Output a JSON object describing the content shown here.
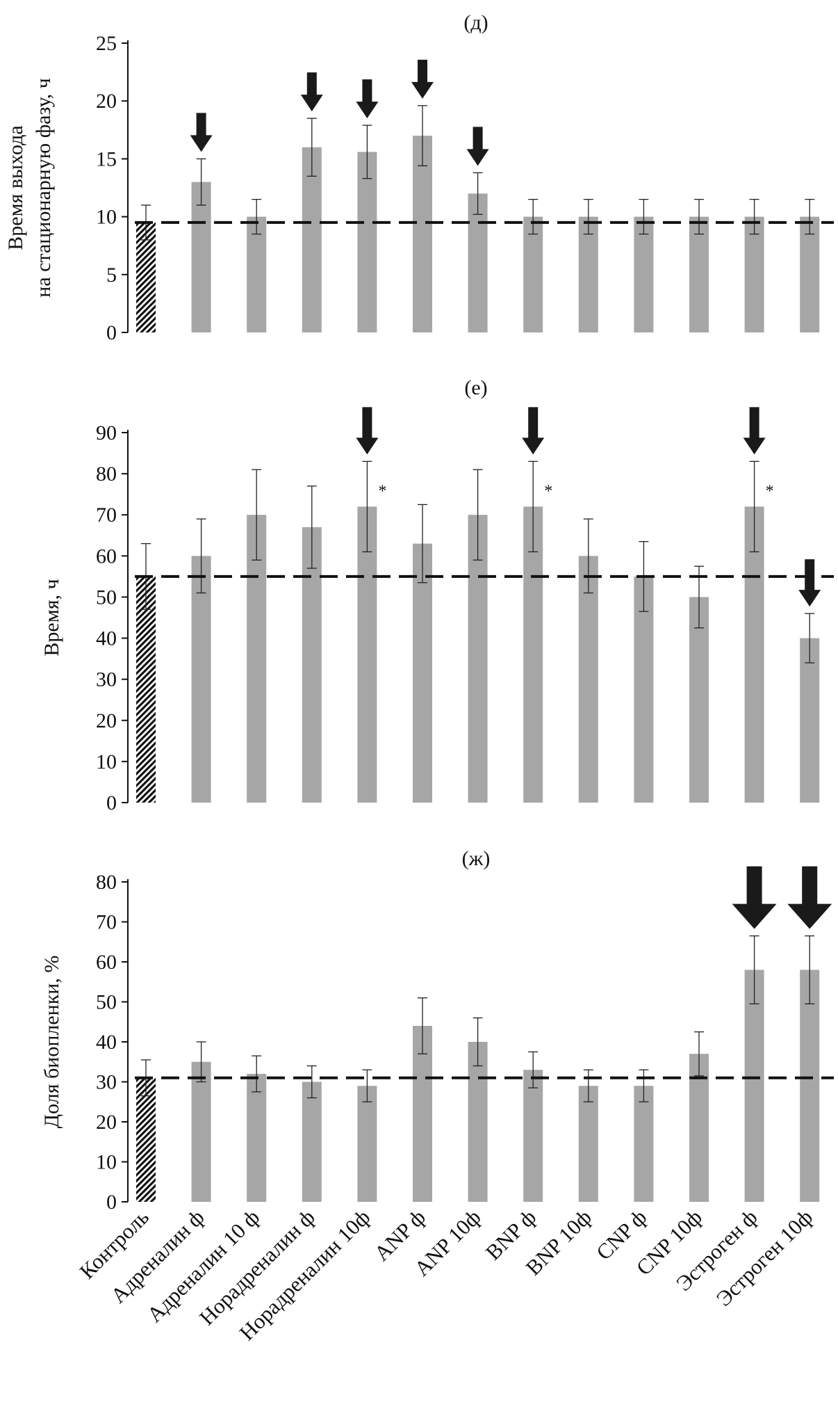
{
  "categories": [
    "Контроль",
    "Адреналин ф",
    "Адреналин 10 ф",
    "Норадреналин ф",
    "Норадреналин 10ф",
    "ANP ф",
    "ANP 10ф",
    "BNP ф",
    "BNP 10ф",
    "CNP ф",
    "CNP 10ф",
    "Эстроген ф",
    "Эстроген 10ф"
  ],
  "colors": {
    "bar": "#a6a6a6",
    "control_hatch": "#111111",
    "arrow": "#1a1a1a",
    "reference_line": "#111111"
  },
  "chart_data": [
    {
      "type": "bar",
      "panel_label": "(д)",
      "title": "",
      "ylabel_lines": [
        "Время выхода",
        "на стационарную фазу, ч"
      ],
      "xlabel": "",
      "ylim": [
        0,
        25
      ],
      "yticks": [
        0,
        5,
        10,
        15,
        20,
        25
      ],
      "values": [
        9.5,
        13,
        10,
        16,
        15.6,
        17,
        12,
        10,
        10,
        10,
        10,
        10,
        10
      ],
      "errors": [
        1.5,
        2,
        1.5,
        2.5,
        2.3,
        2.6,
        1.8,
        1.5,
        1.5,
        1.5,
        1.5,
        1.5,
        1.5
      ],
      "reference_line": 9.5,
      "arrows": [
        1,
        3,
        4,
        5,
        6
      ],
      "asterisks": []
    },
    {
      "type": "bar",
      "panel_label": "(е)",
      "title": "",
      "ylabel_lines": [
        "Время, ч"
      ],
      "xlabel": "",
      "ylim": [
        0,
        90
      ],
      "yticks": [
        0,
        10,
        20,
        30,
        40,
        50,
        60,
        70,
        80,
        90
      ],
      "values": [
        55,
        60,
        70,
        67,
        72,
        63,
        70,
        72,
        60,
        55,
        50,
        72,
        40
      ],
      "errors": [
        8,
        9,
        11,
        10,
        11,
        9.5,
        11,
        11,
        9,
        8.5,
        7.5,
        11,
        6
      ],
      "reference_line": 55,
      "arrows": [
        4,
        7,
        11,
        12
      ],
      "asterisks": [
        4,
        7,
        11
      ]
    },
    {
      "type": "bar",
      "panel_label": "(ж)",
      "title": "",
      "ylabel_lines": [
        "Доля биопленки, %"
      ],
      "xlabel": "",
      "ylim": [
        0,
        80
      ],
      "yticks": [
        0,
        10,
        20,
        30,
        40,
        50,
        60,
        70,
        80
      ],
      "values": [
        31,
        35,
        32,
        30,
        29,
        44,
        40,
        33,
        29,
        29,
        37,
        58,
        58
      ],
      "errors": [
        4.5,
        5,
        4.5,
        4,
        4,
        7,
        6,
        4.5,
        4,
        4,
        5.5,
        8.5,
        8.5
      ],
      "reference_line": 31,
      "arrows": [
        11,
        12
      ],
      "asterisks": []
    }
  ]
}
